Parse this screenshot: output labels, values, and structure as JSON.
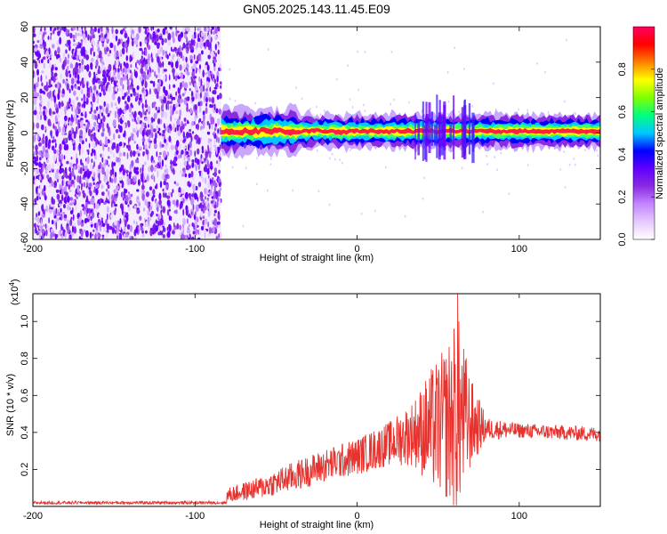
{
  "title": "GN05.2025.143.11.45.E09",
  "chart_data": [
    {
      "type": "heatmap",
      "name": "spectrogram",
      "xlabel": "Height of straight line (km)",
      "ylabel": "Frequency (Hz)",
      "xlim": [
        -200,
        150
      ],
      "ylim": [
        -60,
        60
      ],
      "xticks": [
        -200,
        -100,
        0,
        100
      ],
      "yticks": [
        -60,
        -40,
        -20,
        0,
        20,
        40,
        60
      ],
      "noise_region_x": [
        -200,
        -84
      ],
      "signal_band": {
        "x_start": -84,
        "x_end": 150,
        "center_hz": 1,
        "halfwidth_hz": 4,
        "burst_region_x": [
          35,
          72
        ],
        "burst_extent_hz": [
          -18,
          22
        ]
      },
      "colorbar": {
        "label": "Normalized spectral amplitude",
        "range": [
          0.0,
          1.0
        ],
        "ticks": [
          "0.0",
          "0.2",
          "0.4",
          "0.6",
          "0.8"
        ],
        "ticks_values": [
          0.0,
          0.2,
          0.4,
          0.6,
          0.8
        ],
        "colors": [
          "#ffffff",
          "#e6c9ff",
          "#c386ff",
          "#8a2be2",
          "#6000ff",
          "#0000ff",
          "#00c8ff",
          "#00ff80",
          "#80ff00",
          "#ffff00",
          "#ff8000",
          "#ff0000",
          "#ff0060"
        ]
      }
    },
    {
      "type": "line",
      "name": "snr",
      "xlabel": "Height of straight line (km)",
      "ylabel": "SNR (10 * v/v)",
      "multiplier": "(x10",
      "multiplier_exp": "4",
      "multiplier_close": ")",
      "xlim": [
        -200,
        150
      ],
      "ylim": [
        0,
        1.15
      ],
      "xticks": [
        -200,
        -100,
        0,
        100
      ],
      "yticks": [
        0.2,
        0.4,
        0.6,
        0.8,
        1.0
      ],
      "color": "#e8322e",
      "envelope": [
        {
          "x": -200,
          "base": 0.02,
          "amp": 0.008
        },
        {
          "x": -81,
          "base": 0.02,
          "amp": 0.008
        },
        {
          "x": -80,
          "base": 0.06,
          "amp": 0.04
        },
        {
          "x": -60,
          "base": 0.1,
          "amp": 0.06
        },
        {
          "x": -40,
          "base": 0.16,
          "amp": 0.08
        },
        {
          "x": -20,
          "base": 0.22,
          "amp": 0.09
        },
        {
          "x": 0,
          "base": 0.27,
          "amp": 0.1
        },
        {
          "x": 20,
          "base": 0.34,
          "amp": 0.12
        },
        {
          "x": 35,
          "base": 0.4,
          "amp": 0.18
        },
        {
          "x": 45,
          "base": 0.42,
          "amp": 0.32
        },
        {
          "x": 55,
          "base": 0.45,
          "amp": 0.42
        },
        {
          "x": 62,
          "base": 0.5,
          "amp": 0.55
        },
        {
          "x": 70,
          "base": 0.45,
          "amp": 0.25
        },
        {
          "x": 80,
          "base": 0.42,
          "amp": 0.06
        },
        {
          "x": 100,
          "base": 0.41,
          "amp": 0.04
        },
        {
          "x": 150,
          "base": 0.39,
          "amp": 0.04
        }
      ],
      "peak": {
        "x": 62,
        "y": 1.15
      }
    }
  ]
}
